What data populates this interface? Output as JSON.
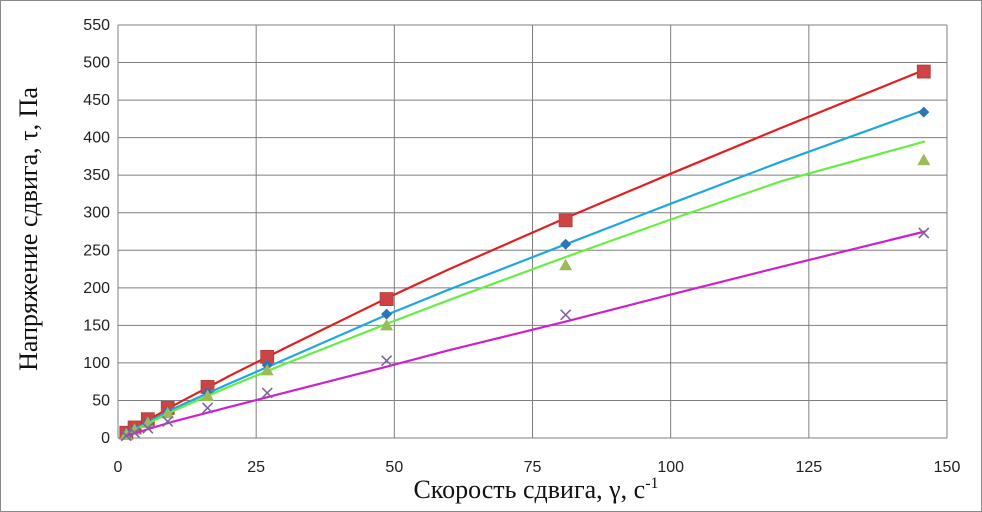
{
  "chart_data": {
    "type": "scatter",
    "xlabel": "Скорость сдвига, γ, с",
    "xlabel_sup": "-1",
    "ylabel": "Напряжение сдвига, τ, Па",
    "xlim": [
      0,
      150
    ],
    "ylim": [
      0,
      550
    ],
    "xticks": [
      "0",
      "25",
      "50",
      "75",
      "100",
      "125",
      "150"
    ],
    "yticks": [
      "0",
      "50",
      "100",
      "150",
      "200",
      "250",
      "300",
      "350",
      "400",
      "450",
      "500",
      "550"
    ],
    "grid": true,
    "legend": "none",
    "series": [
      {
        "color": "#cc4444",
        "line_color": "#e02020",
        "marker": "square",
        "x": [
          1.5,
          3,
          5.4,
          9,
          16.2,
          27,
          48.6,
          81,
          145.8
        ],
        "y": [
          7,
          14,
          25,
          40,
          68,
          108,
          185,
          290,
          488
        ],
        "fit": [
          [
            1.5,
            7
          ],
          [
            10,
            43
          ],
          [
            20,
            82
          ],
          [
            30,
            119
          ],
          [
            48.6,
            186
          ],
          [
            60,
            225
          ],
          [
            81,
            293
          ],
          [
            100,
            352
          ],
          [
            120,
            413
          ],
          [
            145.8,
            490
          ]
        ]
      },
      {
        "color": "#2e75b6",
        "line_color": "#1fa8e0",
        "marker": "diamond",
        "x": [
          1.5,
          3,
          5.4,
          9,
          16.2,
          27,
          48.6,
          81,
          145.8
        ],
        "y": [
          6,
          12,
          21,
          35,
          60,
          97,
          165,
          258,
          434
        ],
        "fit": [
          [
            1.5,
            6
          ],
          [
            10,
            39
          ],
          [
            20,
            72
          ],
          [
            30,
            104
          ],
          [
            48.6,
            164
          ],
          [
            60,
            198
          ],
          [
            81,
            258
          ],
          [
            100,
            312
          ],
          [
            120,
            368
          ],
          [
            146,
            437
          ]
        ]
      },
      {
        "color": "#9bbb59",
        "line_color": "#66ee44",
        "marker": "triangle",
        "x": [
          1.5,
          3,
          5.4,
          9,
          16.2,
          27,
          48.6,
          81,
          145.8
        ],
        "y": [
          5,
          11,
          20,
          33,
          56,
          90,
          150,
          230,
          370
        ],
        "fit": [
          [
            1.5,
            5
          ],
          [
            10,
            36
          ],
          [
            20,
            68
          ],
          [
            30,
            98
          ],
          [
            48.6,
            152
          ],
          [
            60,
            184
          ],
          [
            81,
            241
          ],
          [
            100,
            291
          ],
          [
            120,
            342
          ],
          [
            146,
            395
          ]
        ]
      },
      {
        "color": "#8064a2",
        "line_color": "#cc22cc",
        "marker": "x",
        "x": [
          1.5,
          3,
          5.4,
          9,
          16.2,
          27,
          48.6,
          81,
          145.8
        ],
        "y": [
          3,
          7,
          13,
          22,
          40,
          60,
          103,
          164,
          273
        ],
        "fit": [
          [
            1.5,
            3
          ],
          [
            10,
            22
          ],
          [
            20,
            41
          ],
          [
            30,
            60
          ],
          [
            48.6,
            95
          ],
          [
            60,
            117
          ],
          [
            81,
            155
          ],
          [
            100,
            191
          ],
          [
            120,
            228
          ],
          [
            146,
            275
          ]
        ]
      }
    ]
  }
}
